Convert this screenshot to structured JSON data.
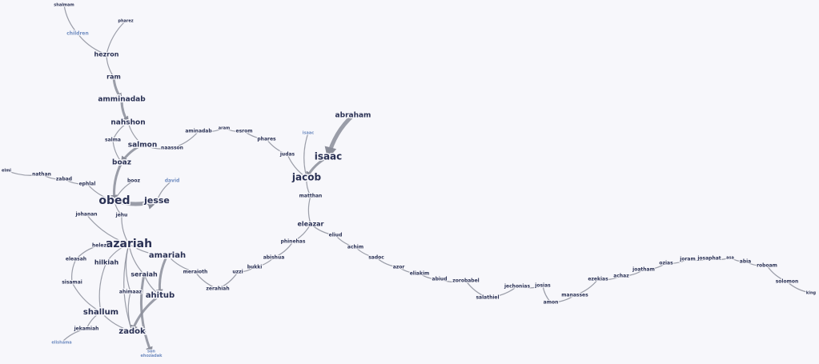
{
  "colors": {
    "node": "#2a3154",
    "node_light": "#6f8cc0",
    "edge": "#8a8d99"
  },
  "nodes": {
    "shalmam": {
      "label": "shalmam",
      "size": 5
    },
    "pharez": {
      "label": "pharez",
      "size": 5
    },
    "children": {
      "label": "children",
      "size": 6,
      "light": true
    },
    "hezron": {
      "label": "hezron",
      "size": 8
    },
    "ram": {
      "label": "ram",
      "size": 8
    },
    "amminadab": {
      "label": "amminadab",
      "size": 9
    },
    "nahshon": {
      "label": "nahshon",
      "size": 9
    },
    "salma": {
      "label": "salma",
      "size": 6
    },
    "salmon": {
      "label": "salmon",
      "size": 9
    },
    "naasson": {
      "label": "naasson",
      "size": 6
    },
    "aminadab": {
      "label": "aminadab",
      "size": 6
    },
    "aram": {
      "label": "aram",
      "size": 5
    },
    "esrom": {
      "label": "esrom",
      "size": 6
    },
    "phares": {
      "label": "phares",
      "size": 6
    },
    "judas": {
      "label": "judas",
      "size": 6
    },
    "isaac_small": {
      "label": "isaac",
      "size": 5,
      "light": true
    },
    "isaac": {
      "label": "isaac",
      "size": 12
    },
    "abraham": {
      "label": "abraham",
      "size": 9
    },
    "jacob": {
      "label": "jacob",
      "size": 12
    },
    "matthan": {
      "label": "matthan",
      "size": 6
    },
    "boaz": {
      "label": "boaz",
      "size": 9
    },
    "booz": {
      "label": "booz",
      "size": 6
    },
    "david": {
      "label": "david",
      "size": 6,
      "light": true
    },
    "obed": {
      "label": "obed",
      "size": 14
    },
    "jesse": {
      "label": "jesse",
      "size": 11
    },
    "elmi": {
      "label": "elmi",
      "size": 5
    },
    "nathan": {
      "label": "nathan",
      "size": 6
    },
    "zabad": {
      "label": "zabad",
      "size": 6
    },
    "ephlal": {
      "label": "ephlal",
      "size": 6
    },
    "johanan": {
      "label": "johanan",
      "size": 6
    },
    "jehu": {
      "label": "jehu",
      "size": 6
    },
    "azariah": {
      "label": "azariah",
      "size": 14
    },
    "helez": {
      "label": "helez",
      "size": 6
    },
    "eleasah": {
      "label": "eleasah",
      "size": 6
    },
    "hilkiah": {
      "label": "hilkiah",
      "size": 8
    },
    "amariah": {
      "label": "amariah",
      "size": 10
    },
    "meraioth": {
      "label": "meraioth",
      "size": 6
    },
    "zerahiah": {
      "label": "zerahiah",
      "size": 6
    },
    "uzzi": {
      "label": "uzzi",
      "size": 6
    },
    "bukki": {
      "label": "bukki",
      "size": 6
    },
    "abishua": {
      "label": "abishua",
      "size": 6
    },
    "phinehas": {
      "label": "phinehas",
      "size": 6
    },
    "eleazar": {
      "label": "eleazar",
      "size": 8
    },
    "eliud": {
      "label": "eliud",
      "size": 6
    },
    "achim": {
      "label": "achim",
      "size": 6
    },
    "sadoc": {
      "label": "sadoc",
      "size": 6
    },
    "azor": {
      "label": "azor",
      "size": 6
    },
    "eliakim": {
      "label": "eliakim",
      "size": 6
    },
    "abiud": {
      "label": "abiud",
      "size": 6
    },
    "zorobabel": {
      "label": "zorobabel",
      "size": 6
    },
    "salathiel": {
      "label": "salathiel",
      "size": 6
    },
    "jechonias": {
      "label": "jechonias",
      "size": 6
    },
    "josias": {
      "label": "josias",
      "size": 6
    },
    "amon": {
      "label": "amon",
      "size": 6
    },
    "manasses": {
      "label": "manasses",
      "size": 6
    },
    "ezekias": {
      "label": "ezekias",
      "size": 6
    },
    "achaz": {
      "label": "achaz",
      "size": 6
    },
    "joatham": {
      "label": "joatham",
      "size": 6
    },
    "ozias": {
      "label": "ozias",
      "size": 6
    },
    "joram": {
      "label": "joram",
      "size": 6
    },
    "josaphat": {
      "label": "josaphat",
      "size": 6
    },
    "asa": {
      "label": "asa",
      "size": 5
    },
    "abia": {
      "label": "abia",
      "size": 6
    },
    "roboam": {
      "label": "roboam",
      "size": 6
    },
    "solomon": {
      "label": "solomon",
      "size": 6
    },
    "king": {
      "label": "king",
      "size": 5
    },
    "seraiah": {
      "label": "seraiah",
      "size": 8
    },
    "ahitub": {
      "label": "ahitub",
      "size": 10
    },
    "ahimaaz": {
      "label": "ahimaaz",
      "size": 6
    },
    "sisamai": {
      "label": "sisamai",
      "size": 6
    },
    "shallum": {
      "label": "shallum",
      "size": 10
    },
    "jekamiah": {
      "label": "jekamiah",
      "size": 6
    },
    "zadok": {
      "label": "zadok",
      "size": 10
    },
    "elishama": {
      "label": "elishama",
      "size": 5,
      "light": true
    },
    "son_jehozadak": {
      "label": "son\nehozadak",
      "size": 5,
      "light": true
    }
  },
  "edges": [
    [
      "shalmam",
      "children"
    ],
    [
      "children",
      "hezron"
    ],
    [
      "pharez",
      "hezron"
    ],
    [
      "hezron",
      "ram"
    ],
    [
      "ram",
      "amminadab",
      3
    ],
    [
      "amminadab",
      "nahshon",
      3
    ],
    [
      "nahshon",
      "salmon"
    ],
    [
      "nahshon",
      "salma"
    ],
    [
      "salma",
      "boaz"
    ],
    [
      "salmon",
      "boaz",
      3
    ],
    [
      "salmon",
      "naasson"
    ],
    [
      "naasson",
      "aminadab"
    ],
    [
      "aminadab",
      "aram"
    ],
    [
      "aram",
      "esrom"
    ],
    [
      "esrom",
      "phares"
    ],
    [
      "phares",
      "judas"
    ],
    [
      "judas",
      "jacob"
    ],
    [
      "isaac_small",
      "jacob"
    ],
    [
      "abraham",
      "isaac",
      5
    ],
    [
      "isaac",
      "jacob",
      3
    ],
    [
      "jacob",
      "matthan"
    ],
    [
      "matthan",
      "eleazar"
    ],
    [
      "boaz",
      "obed",
      3
    ],
    [
      "booz",
      "obed"
    ],
    [
      "david",
      "jesse"
    ],
    [
      "obed",
      "jesse",
      5
    ],
    [
      "elmi",
      "nathan"
    ],
    [
      "nathan",
      "zabad"
    ],
    [
      "zabad",
      "ephlal"
    ],
    [
      "ephlal",
      "obed"
    ],
    [
      "obed",
      "jehu"
    ],
    [
      "jehu",
      "azariah"
    ],
    [
      "johanan",
      "azariah"
    ],
    [
      "helez",
      "azariah"
    ],
    [
      "eleasah",
      "sisamai"
    ],
    [
      "sisamai",
      "shallum"
    ],
    [
      "helez",
      "eleasah"
    ],
    [
      "hilkiah",
      "shallum"
    ],
    [
      "azariah",
      "hilkiah"
    ],
    [
      "azariah",
      "amariah"
    ],
    [
      "amariah",
      "meraioth"
    ],
    [
      "meraioth",
      "zerahiah"
    ],
    [
      "zerahiah",
      "uzzi"
    ],
    [
      "uzzi",
      "bukki"
    ],
    [
      "bukki",
      "abishua"
    ],
    [
      "abishua",
      "phinehas"
    ],
    [
      "phinehas",
      "eleazar"
    ],
    [
      "eleazar",
      "eliud"
    ],
    [
      "eliud",
      "achim"
    ],
    [
      "achim",
      "sadoc"
    ],
    [
      "sadoc",
      "azor"
    ],
    [
      "azor",
      "eliakim"
    ],
    [
      "eliakim",
      "abiud"
    ],
    [
      "abiud",
      "zorobabel"
    ],
    [
      "zorobabel",
      "salathiel"
    ],
    [
      "salathiel",
      "jechonias"
    ],
    [
      "jechonias",
      "josias"
    ],
    [
      "josias",
      "amon"
    ],
    [
      "amon",
      "manasses"
    ],
    [
      "manasses",
      "ezekias"
    ],
    [
      "ezekias",
      "achaz"
    ],
    [
      "achaz",
      "joatham"
    ],
    [
      "joatham",
      "ozias"
    ],
    [
      "ozias",
      "joram"
    ],
    [
      "joram",
      "josaphat"
    ],
    [
      "josaphat",
      "asa"
    ],
    [
      "asa",
      "abia"
    ],
    [
      "abia",
      "roboam"
    ],
    [
      "roboam",
      "solomon"
    ],
    [
      "solomon",
      "king"
    ],
    [
      "azariah",
      "seraiah"
    ],
    [
      "seraiah",
      "ahitub"
    ],
    [
      "amariah",
      "ahitub",
      3
    ],
    [
      "ahitub",
      "zadok",
      3
    ],
    [
      "azariah",
      "ahimaaz"
    ],
    [
      "ahimaaz",
      "zadok"
    ],
    [
      "shallum",
      "zadok"
    ],
    [
      "shallum",
      "jekamiah"
    ],
    [
      "jekamiah",
      "elishama"
    ],
    [
      "seraiah",
      "son_jehozadak",
      3
    ],
    [
      "azariah",
      "zadok"
    ]
  ]
}
